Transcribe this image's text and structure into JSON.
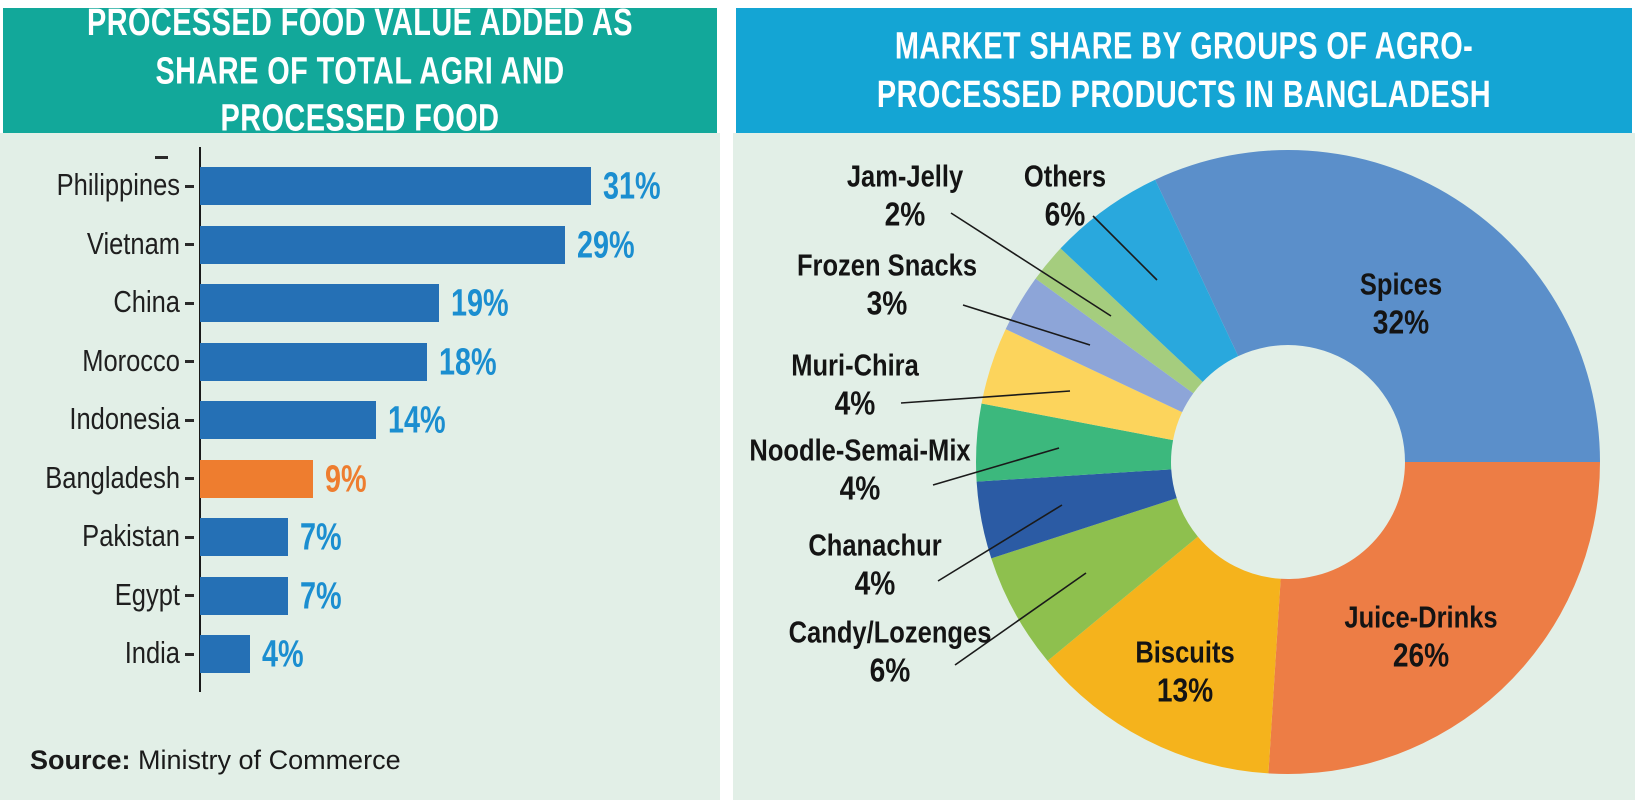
{
  "theme": {
    "page_background": "#ffffff",
    "panel_background": "#e2efe7",
    "left_header_bg": "#12a89a",
    "right_header_bg": "#14a5d4",
    "header_text_color": "#ffffff",
    "axis_color": "#1a1a1a",
    "label_color": "#1f1f1f"
  },
  "chart_data": [
    {
      "type": "bar",
      "orientation": "horizontal",
      "title": "PROCESSED FOOD VALUE ADDED AS SHARE OF TOTAL AGRI AND PROCESSED FOOD",
      "categories": [
        "Philippines",
        "Vietnam",
        "China",
        "Morocco",
        "Indonesia",
        "Bangladesh",
        "Pakistan",
        "Egypt",
        "India"
      ],
      "values": [
        31,
        29,
        19,
        18,
        14,
        9,
        7,
        7,
        4
      ],
      "value_labels": [
        "31%",
        "29%",
        "19%",
        "18%",
        "14%",
        "9%",
        "7%",
        "7%",
        "4%"
      ],
      "xlim": [
        0,
        33
      ],
      "grid": false,
      "bar_color": "#2570b5",
      "value_label_color": "#1b8ed0",
      "highlight_index": 5,
      "highlight_color": "#ee7d2f",
      "source_label": "Source:",
      "source_text": "Ministry of Commerce"
    },
    {
      "type": "pie",
      "donut": true,
      "title": "MARKET SHARE BY GROUPS OF AGRO-PROCESSED PRODUCTS IN BANGLADESH",
      "start_angle_deg": -25.2,
      "slices": [
        {
          "label": "Spices",
          "pct": 32,
          "pct_label": "32%",
          "color": "#5b8fca",
          "placement": "inside"
        },
        {
          "label": "Juice-Drinks",
          "pct": 26,
          "pct_label": "26%",
          "color": "#ed7d45",
          "placement": "inside"
        },
        {
          "label": "Biscuits",
          "pct": 13,
          "pct_label": "13%",
          "color": "#f5b31c",
          "placement": "inside"
        },
        {
          "label": "Candy/Lozenges",
          "pct": 6,
          "pct_label": "6%",
          "color": "#8ec04e",
          "placement": "outside"
        },
        {
          "label": "Chanachur",
          "pct": 4,
          "pct_label": "4%",
          "color": "#2b5ba4",
          "placement": "outside"
        },
        {
          "label": "Noodle-Semai-Mix",
          "pct": 4,
          "pct_label": "4%",
          "color": "#3cb87d",
          "placement": "outside"
        },
        {
          "label": "Muri-Chira",
          "pct": 4,
          "pct_label": "4%",
          "color": "#fcd45c",
          "placement": "outside"
        },
        {
          "label": "Frozen Snacks",
          "pct": 3,
          "pct_label": "3%",
          "color": "#8da5d8",
          "placement": "outside"
        },
        {
          "label": "Jam-Jelly",
          "pct": 2,
          "pct_label": "2%",
          "color": "#a5cd7e",
          "placement": "outside"
        },
        {
          "label": "Others",
          "pct": 6,
          "pct_label": "6%",
          "color": "#29a8dd",
          "placement": "outside"
        }
      ]
    }
  ]
}
